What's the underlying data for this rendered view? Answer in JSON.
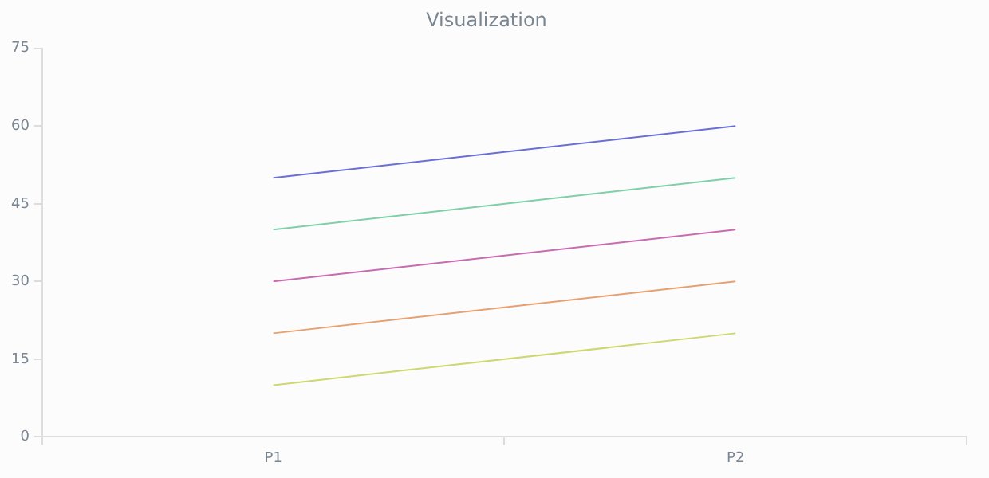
{
  "chart_data": {
    "type": "line",
    "title": "Visualization",
    "categories": [
      "P1",
      "P2"
    ],
    "series": [
      {
        "color": "#6a6fd6",
        "values": [
          50,
          60
        ]
      },
      {
        "color": "#7fcfa8",
        "values": [
          40,
          50
        ]
      },
      {
        "color": "#c86bb0",
        "values": [
          30,
          40
        ]
      },
      {
        "color": "#e8a070",
        "values": [
          20,
          30
        ]
      },
      {
        "color": "#cdd870",
        "values": [
          10,
          20
        ]
      }
    ],
    "ylim": [
      0,
      75
    ],
    "yticks": [
      0,
      15,
      30,
      45,
      60,
      75
    ],
    "grid": false,
    "legend": false,
    "marker": "none",
    "line_style": "solid"
  }
}
